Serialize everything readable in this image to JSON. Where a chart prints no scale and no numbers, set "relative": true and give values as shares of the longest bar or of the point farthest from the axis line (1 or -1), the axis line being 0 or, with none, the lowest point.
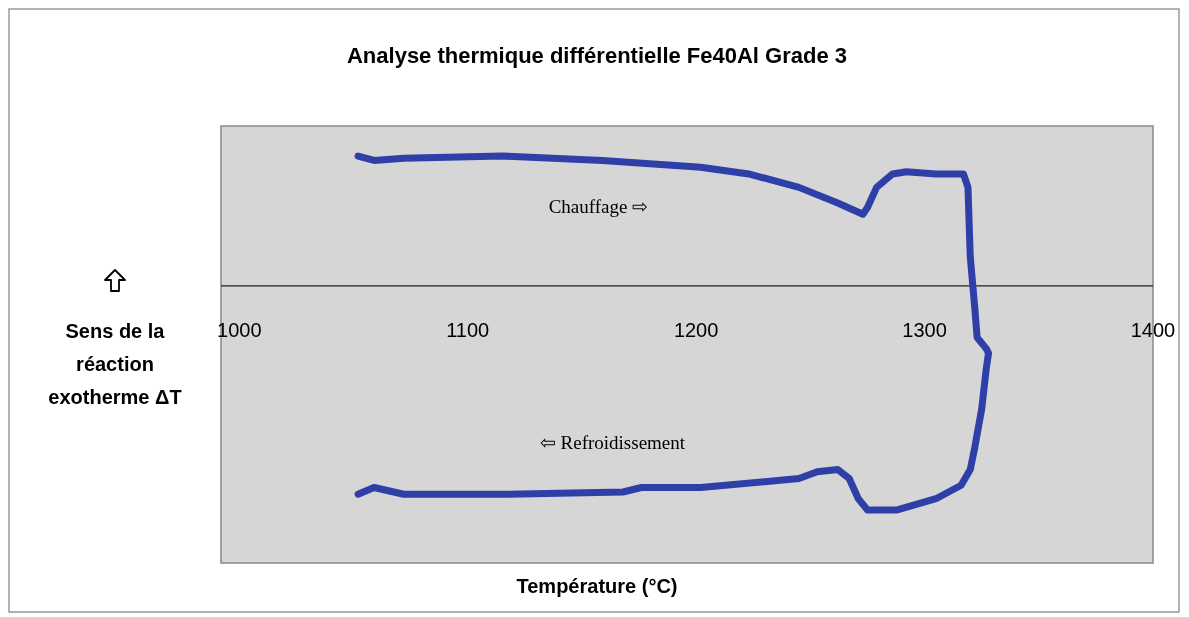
{
  "chart_data": {
    "type": "line",
    "title": "Analyse thermique différentielle Fe40Al Grade 3",
    "xlabel": "Température (°C)",
    "ylabel": "Sens de la réaction exotherme ΔT",
    "relative": true,
    "xlim": [
      992,
      1400
    ],
    "xticks": [
      1000,
      1100,
      1200,
      1300,
      1400
    ],
    "grid": false,
    "marker": "none",
    "line_style": "solid",
    "annotations": [
      "Chauffage ⇨",
      "⇦ Refroidissement"
    ],
    "series": [
      {
        "color": "#2e3fa8",
        "x": [
          1052,
          1059,
          1072,
          1115,
          1159,
          1202,
          1223,
          1245,
          1262,
          1273,
          1275,
          1279,
          1286,
          1292,
          1305,
          1317,
          1319,
          1320,
          1322,
          1323,
          1327,
          1328,
          1327,
          1325,
          1322,
          1320,
          1316,
          1305,
          1288,
          1275,
          1271,
          1267,
          1262,
          1253,
          1245,
          1202,
          1176,
          1168,
          1116,
          1072,
          1059,
          1052
        ],
        "values": [
          0.58,
          0.56,
          0.57,
          0.58,
          0.56,
          0.53,
          0.5,
          0.44,
          0.37,
          0.32,
          0.35,
          0.44,
          0.5,
          0.51,
          0.5,
          0.5,
          0.44,
          0.13,
          -0.1,
          -0.23,
          -0.28,
          -0.3,
          -0.37,
          -0.55,
          -0.72,
          -0.82,
          -0.89,
          -0.95,
          -1,
          -1,
          -0.95,
          -0.86,
          -0.82,
          -0.83,
          -0.86,
          -0.9,
          -0.9,
          -0.92,
          -0.93,
          -0.93,
          -0.9,
          -0.93
        ]
      }
    ]
  }
}
